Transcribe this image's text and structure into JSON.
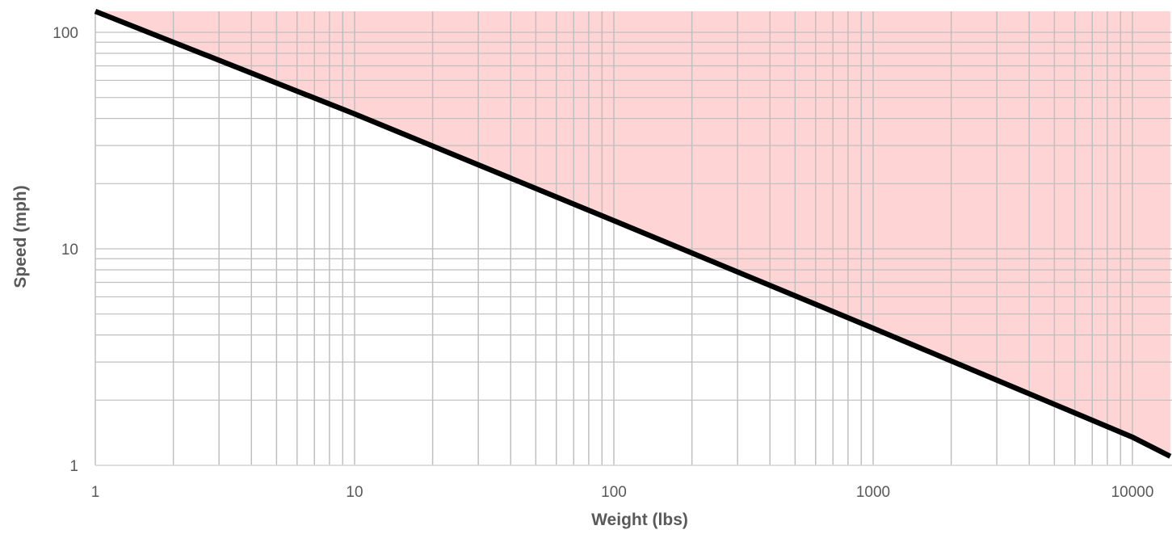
{
  "chart_data": {
    "type": "line",
    "title": "",
    "xlabel": "Weight (lbs)",
    "ylabel": "Speed (mph)",
    "x_scale": "log",
    "y_scale": "log",
    "xlim": [
      1,
      14000
    ],
    "ylim": [
      1,
      125
    ],
    "x_ticks": [
      "1",
      "10",
      "100",
      "1000",
      "10000"
    ],
    "y_ticks": [
      "1",
      "10",
      "100"
    ],
    "grid": true,
    "legend": "none",
    "series": [
      {
        "x": [
          1,
          10,
          100,
          1000,
          10000,
          14000
        ],
        "y": [
          125,
          42,
          13.5,
          4.3,
          1.35,
          1.1
        ],
        "color": "#000000",
        "fill_above": "#ffd4d4"
      }
    ]
  },
  "colors": {
    "grid": "#bfbfbf",
    "axis": "#d9d9d9",
    "line": "#000000",
    "shade": "#ffd4d4"
  }
}
